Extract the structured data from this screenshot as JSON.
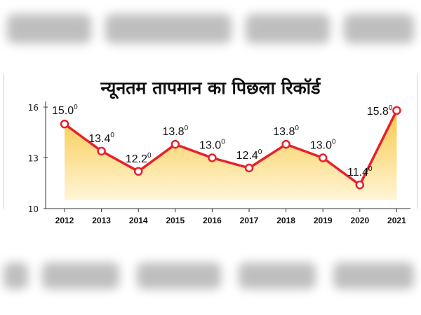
{
  "chart_data": {
    "type": "line",
    "title": "न्यूनतम तापमान का पिछला रिकॉर्ड",
    "categories": [
      "2012",
      "2013",
      "2014",
      "2015",
      "2016",
      "2017",
      "2018",
      "2019",
      "2020",
      "2021"
    ],
    "values": [
      15.0,
      13.4,
      12.2,
      13.8,
      13.0,
      12.4,
      13.8,
      13.0,
      11.4,
      15.8
    ],
    "data_labels": [
      "15.0",
      "13.4",
      "12.2",
      "13.8",
      "13.0",
      "12.4",
      "13.8",
      "13.0",
      "11.4",
      "15.8"
    ],
    "data_label_suffix": "0",
    "y_ticks": [
      "16",
      "13",
      "10"
    ],
    "ylim": [
      10,
      16
    ],
    "grid": false,
    "colors": {
      "line": "#e8202a",
      "fill_top": "#f9c84a",
      "fill_bottom": "#fff6d6",
      "axis": "#333333"
    }
  }
}
